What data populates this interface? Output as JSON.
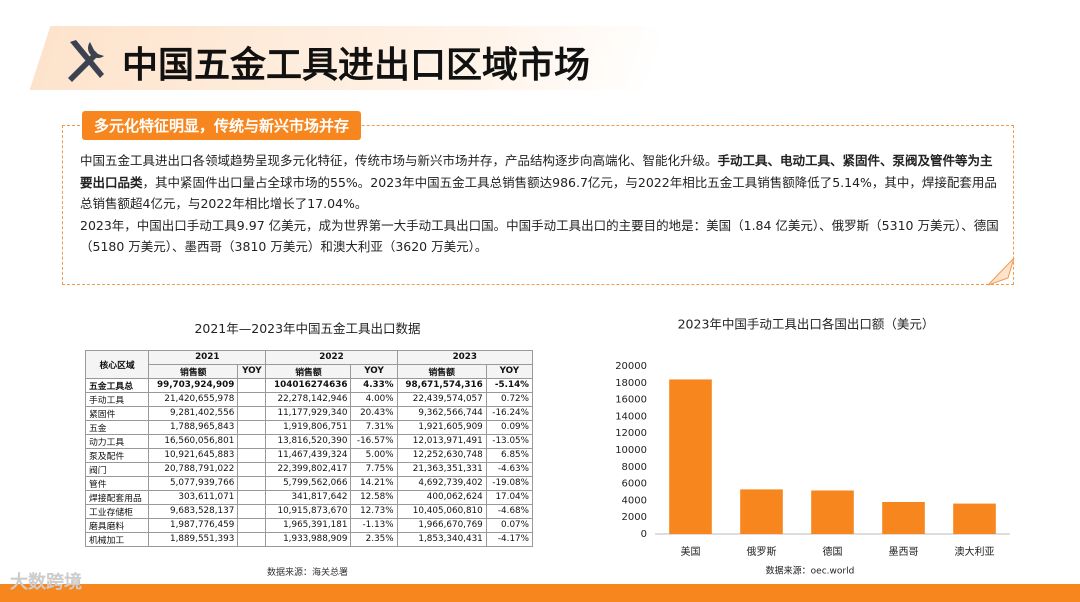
{
  "header": {
    "title": "中国五金工具进出口区域市场"
  },
  "callout": {
    "tag": "多元化特征明显，传统与新兴市场并存",
    "paragraphs": [
      [
        {
          "text": "中国五金工具进出口各领域趋势呈现多元化特征，传统市场与新兴市场并存，产品结构逐步向高端化、智能化升级。",
          "bold": false
        },
        {
          "text": "手动工具、电动工具、紧固件、泵阀及管件等为主要出口品类",
          "bold": true
        },
        {
          "text": "，其中紧固件出口量占全球市场的55%。2023年中国五金工具总销售额达986.7亿元，与2022年相比五金工具销售额降低了5.14%，其中，焊接配套用品总销售额超4亿元，与2022年相比增长了17.04%。",
          "bold": false
        }
      ],
      [
        {
          "text": "2023年，中国出口手动工具9.97 亿美元，成为世界第一大手动工具出口国。中国手动工具出口的主要目的地是：美国（1.84 亿美元）、俄罗斯（5310 万美元）、德国（5180 万美元）、墨西哥（3810 万美元）和澳大利亚（3620 万美元）。",
          "bold": false
        }
      ]
    ]
  },
  "table": {
    "title": "2021年—2023年中国五金工具出口数据",
    "corner": "核心区域",
    "years": [
      "2021",
      "2022",
      "2023"
    ],
    "columns": [
      "销售额",
      "YOY"
    ],
    "rows": [
      [
        "五金工具总",
        "99,703,924,909",
        null,
        "104016274636",
        "4.33%",
        "98,671,574,316",
        "-5.14%"
      ],
      [
        "手动工具",
        "21,420,655,978",
        null,
        "22,278,142,946",
        "4.00%",
        "22,439,574,057",
        "0.72%"
      ],
      [
        "紧固件",
        "9,281,402,556",
        null,
        "11,177,929,340",
        "20.43%",
        "9,362,566,744",
        "-16.24%"
      ],
      [
        "五金",
        "1,788,965,843",
        null,
        "1,919,806,751",
        "7.31%",
        "1,921,605,909",
        "0.09%"
      ],
      [
        "动力工具",
        "16,560,056,801",
        null,
        "13,816,520,390",
        "-16.57%",
        "12,013,971,491",
        "-13.05%"
      ],
      [
        "泵及配件",
        "10,921,645,883",
        null,
        "11,467,439,324",
        "5.00%",
        "12,252,630,748",
        "6.85%"
      ],
      [
        "阀门",
        "20,788,791,022",
        null,
        "22,399,802,417",
        "7.75%",
        "21,363,351,331",
        "-4.63%"
      ],
      [
        "管件",
        "5,077,939,766",
        null,
        "5,799,562,066",
        "14.21%",
        "4,692,739,402",
        "-19.08%"
      ],
      [
        "焊接配套用品",
        "303,611,071",
        null,
        "341,817,642",
        "12.58%",
        "400,062,624",
        "17.04%"
      ],
      [
        "工业存储柜",
        "9,683,528,137",
        null,
        "10,915,873,670",
        "12.73%",
        "10,405,060,810",
        "-4.68%"
      ],
      [
        "磨具磨料",
        "1,987,776,459",
        null,
        "1,965,391,181",
        "-1.13%",
        "1,966,670,769",
        "0.07%"
      ],
      [
        "机械加工",
        "1,889,551,393",
        null,
        "1,933,988,909",
        "2.35%",
        "1,853,340,431",
        "-4.17%"
      ]
    ],
    "source": "数据来源：海关总署"
  },
  "chart_data": {
    "type": "bar",
    "title": "2023年中国手动工具出口各国出口额（美元）",
    "categories": [
      "美国",
      "俄罗斯",
      "德国",
      "墨西哥",
      "澳大利亚"
    ],
    "values": [
      18400,
      5310,
      5180,
      3810,
      3620
    ],
    "color": "#f7861e",
    "ylim": [
      0,
      20000
    ],
    "yticks": [
      0,
      2000,
      4000,
      6000,
      8000,
      10000,
      12000,
      14000,
      16000,
      18000,
      20000
    ],
    "grid": false,
    "source": "数据来源：oec.world"
  },
  "footer": {
    "logo": "大数跨境"
  }
}
